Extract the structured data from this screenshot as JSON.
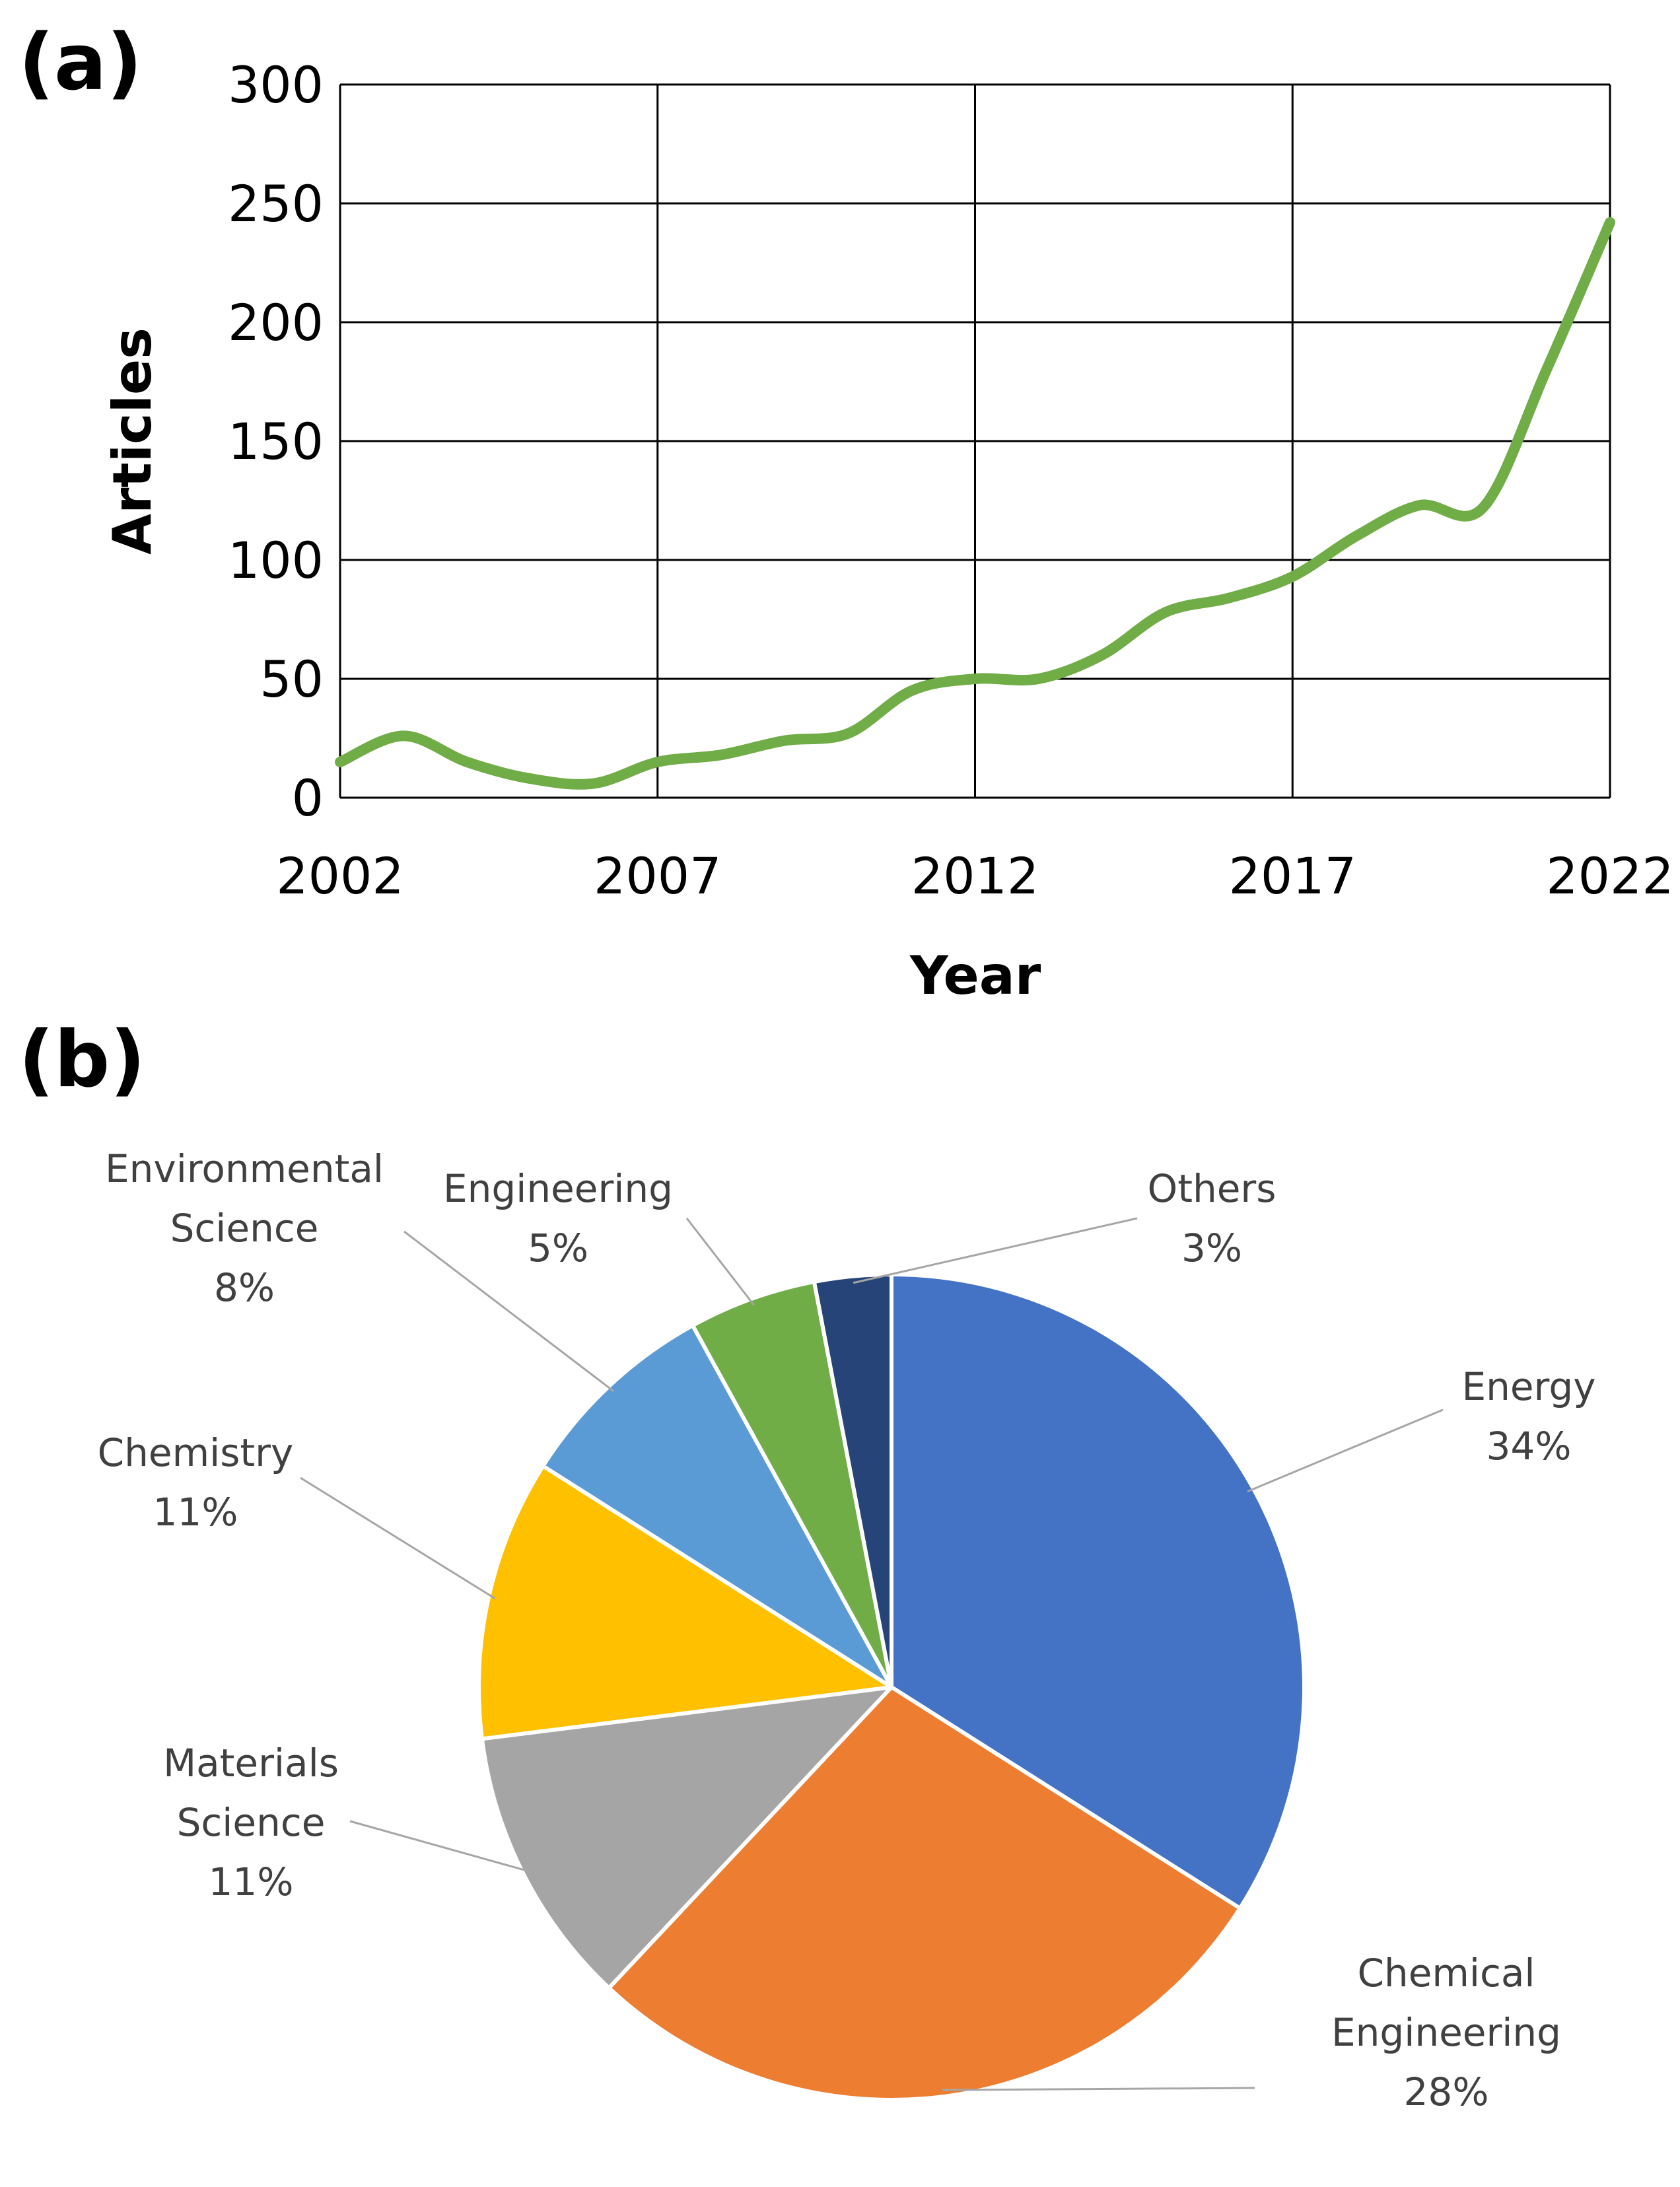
{
  "chart_data": [
    {
      "panel": "(a)",
      "type": "line",
      "title": "",
      "xlabel": "Year",
      "ylabel": "Articles",
      "x": [
        2002,
        2003,
        2004,
        2005,
        2006,
        2007,
        2008,
        2009,
        2010,
        2011,
        2012,
        2013,
        2014,
        2015,
        2016,
        2017,
        2018,
        2019,
        2020,
        2021,
        2022
      ],
      "series": [
        {
          "name": "Articles",
          "color": "#70ad47",
          "values": [
            15,
            26,
            15,
            8,
            6,
            15,
            18,
            24,
            27,
            45,
            50,
            50,
            60,
            78,
            84,
            93,
            110,
            123,
            122,
            180,
            242
          ]
        }
      ],
      "xticks": [
        "2002",
        "2007",
        "2012",
        "2017",
        "2022"
      ],
      "yticks": [
        "0",
        "50",
        "100",
        "150",
        "200",
        "250",
        "300"
      ],
      "xlim": [
        2002,
        2022
      ],
      "ylim": [
        0,
        300
      ],
      "grid": true
    },
    {
      "panel": "(b)",
      "type": "pie",
      "title": "",
      "slices": [
        {
          "name": "Energy",
          "lines": [
            "Energy"
          ],
          "value": 34,
          "label": "34%",
          "color": "#4472c4"
        },
        {
          "name": "Chemical Engineering",
          "lines": [
            "Chemical",
            "Engineering"
          ],
          "value": 28,
          "label": "28%",
          "color": "#ed7d31"
        },
        {
          "name": "Materials Science",
          "lines": [
            "Materials",
            "Science"
          ],
          "value": 11,
          "label": "11%",
          "color": "#a5a5a5"
        },
        {
          "name": "Chemistry",
          "lines": [
            "Chemistry"
          ],
          "value": 11,
          "label": "11%",
          "color": "#ffc000"
        },
        {
          "name": "Environmental Science",
          "lines": [
            "Environmental",
            "Science"
          ],
          "value": 8,
          "label": "8%",
          "color": "#5b9bd5"
        },
        {
          "name": "Engineering",
          "lines": [
            "Engineering"
          ],
          "value": 5,
          "label": "5%",
          "color": "#70ad47"
        },
        {
          "name": "Others",
          "lines": [
            "Others"
          ],
          "value": 3,
          "label": "3%",
          "color": "#264478"
        }
      ]
    }
  ]
}
